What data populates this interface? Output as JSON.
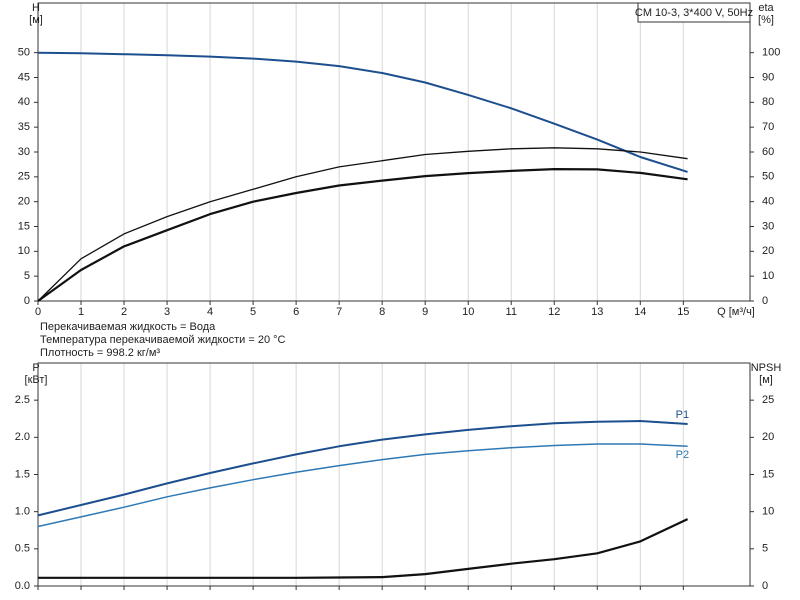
{
  "chart_data": [
    {
      "type": "line",
      "title": "CM 10-3, 3*400 V, 50Hz",
      "ylabel": "H",
      "yunit": "[м]",
      "y2label": "eta",
      "y2unit": "[%]",
      "xlabel": "Q [м³/ч]",
      "x": [
        0,
        1,
        2,
        3,
        4,
        5,
        6,
        7,
        8,
        9,
        10,
        11,
        12,
        13,
        14,
        15.1
      ],
      "xlim": [
        0,
        16.55
      ],
      "xticks": [
        0,
        1,
        2,
        3,
        4,
        5,
        6,
        7,
        8,
        9,
        10,
        11,
        12,
        13,
        14,
        15
      ],
      "ylim": [
        0,
        60
      ],
      "yticks": [
        0,
        5,
        10,
        15,
        20,
        25,
        30,
        35,
        40,
        45,
        50
      ],
      "y2lim": [
        0,
        120
      ],
      "y2ticks": [
        0,
        10,
        20,
        30,
        40,
        50,
        60,
        70,
        80,
        90,
        100
      ],
      "grid": true,
      "series": [
        {
          "color": "#1d4f8f",
          "line_width": 2,
          "values": [
            50,
            49.9,
            49.7,
            49.5,
            49.2,
            48.8,
            48.2,
            47.3,
            45.9,
            44,
            41.5,
            38.8,
            35.7,
            32.5,
            29,
            26
          ]
        },
        {
          "color": "#111111",
          "line_width": 1.3,
          "axis": "y2",
          "values": [
            0,
            17,
            27,
            34,
            40,
            45,
            50,
            54,
            56.5,
            59,
            60.3,
            61.3,
            61.7,
            61.3,
            60,
            57.3
          ]
        },
        {
          "color": "#111111",
          "line_width": 2.2,
          "axis": "y2",
          "values": [
            0,
            12.5,
            22,
            28.5,
            35,
            40,
            43.5,
            46.5,
            48.5,
            50.3,
            51.5,
            52.4,
            53.1,
            53,
            51.6,
            49
          ]
        }
      ],
      "notes": [
        "Перекачиваемая жидкость = Вода",
        "Температура перекачиваемой жидкости = 20 °C",
        "Плотность = 998.2 кг/м³"
      ]
    },
    {
      "type": "line",
      "ylabel": "P",
      "yunit": "[кВт]",
      "y2label": "NPSH",
      "y2unit": "[м]",
      "x": [
        0,
        1,
        2,
        3,
        4,
        5,
        6,
        7,
        8,
        9,
        10,
        11,
        12,
        13,
        14,
        15.1
      ],
      "xlim": [
        0,
        16.55
      ],
      "xticks": [
        0,
        1,
        2,
        3,
        4,
        5,
        6,
        7,
        8,
        9,
        10,
        11,
        12,
        13,
        14,
        15
      ],
      "ylim": [
        0,
        3
      ],
      "yticks": [
        {
          "value": 0,
          "label": "0.0"
        },
        0.5,
        {
          "value": 1,
          "label": "1.0"
        },
        1.5,
        {
          "value": 2,
          "label": "2.0"
        },
        2.5
      ],
      "y2lim": [
        0,
        30
      ],
      "y2ticks": [
        0,
        5,
        10,
        15,
        20,
        25
      ],
      "grid": true,
      "series": [
        {
          "name": "P1",
          "color": "#1d4f8f",
          "line_width": 2,
          "values": [
            0.95,
            1.09,
            1.23,
            1.38,
            1.52,
            1.65,
            1.77,
            1.88,
            1.97,
            2.04,
            2.1,
            2.15,
            2.19,
            2.21,
            2.22,
            2.18
          ]
        },
        {
          "name": "P2",
          "color": "#2e79b5",
          "line_width": 1.5,
          "values": [
            0.8,
            0.93,
            1.06,
            1.2,
            1.32,
            1.43,
            1.53,
            1.62,
            1.7,
            1.77,
            1.82,
            1.86,
            1.89,
            1.91,
            1.91,
            1.88
          ]
        },
        {
          "color": "#111111",
          "line_width": 2.2,
          "axis": "y2",
          "values": [
            1.1,
            1.1,
            1.1,
            1.1,
            1.1,
            1.1,
            1.1,
            1.15,
            1.2,
            1.6,
            2.3,
            3,
            3.6,
            4.4,
            6,
            9
          ]
        }
      ]
    }
  ]
}
